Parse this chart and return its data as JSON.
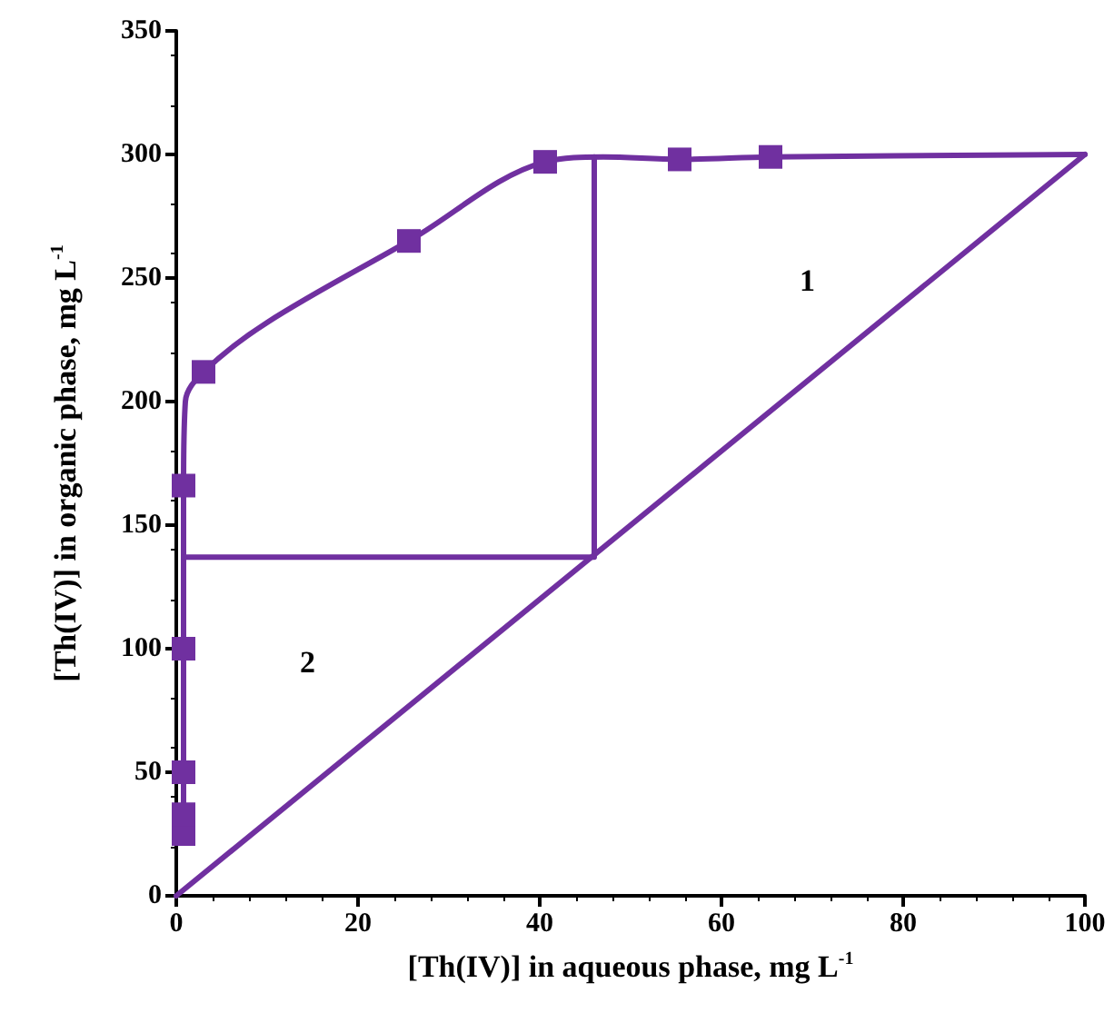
{
  "chart_data": {
    "type": "scatter",
    "xlabel": "[Th(IV)] in aqueous phase, mg L$^{-1}$",
    "ylabel": "[Th(IV)] in organic phase, mg L$^{-1}$",
    "xlim": [
      0,
      100
    ],
    "xticks": [
      0,
      20,
      40,
      60,
      80,
      100
    ],
    "ylim": [
      0,
      350
    ],
    "yticks": [
      0,
      50,
      100,
      150,
      200,
      250,
      300,
      350
    ],
    "grid": false,
    "series": [
      {
        "type": "line",
        "marker": "none",
        "line_style": "solid",
        "color": "#7030a0",
        "x": [
          0.8,
          0.8,
          0.8,
          1,
          3,
          10,
          25.6,
          40.6,
          47,
          55.4,
          65.4,
          100
        ],
        "values": [
          25,
          100,
          166,
          200,
          212,
          232,
          265,
          297,
          299,
          298,
          299,
          300
        ]
      },
      {
        "type": "line",
        "marker": "none",
        "line_style": "solid",
        "color": "#7030a0",
        "x": [
          0,
          100
        ],
        "values": [
          0,
          300
        ]
      },
      {
        "type": "line",
        "marker": "none",
        "line_style": "solid",
        "color": "#7030a0",
        "x": [
          0.8,
          46,
          46
        ],
        "values": [
          137,
          137,
          299
        ]
      },
      {
        "marker": "square",
        "color": "#7030a0",
        "x": [
          0.8,
          0.8,
          0.8,
          0.8,
          0.8,
          3,
          25.6,
          40.6,
          55.4,
          65.4
        ],
        "values": [
          25,
          33,
          50,
          100,
          166,
          212,
          265,
          297,
          298,
          299
        ]
      }
    ],
    "annotations": [
      "1",
      "2"
    ]
  }
}
